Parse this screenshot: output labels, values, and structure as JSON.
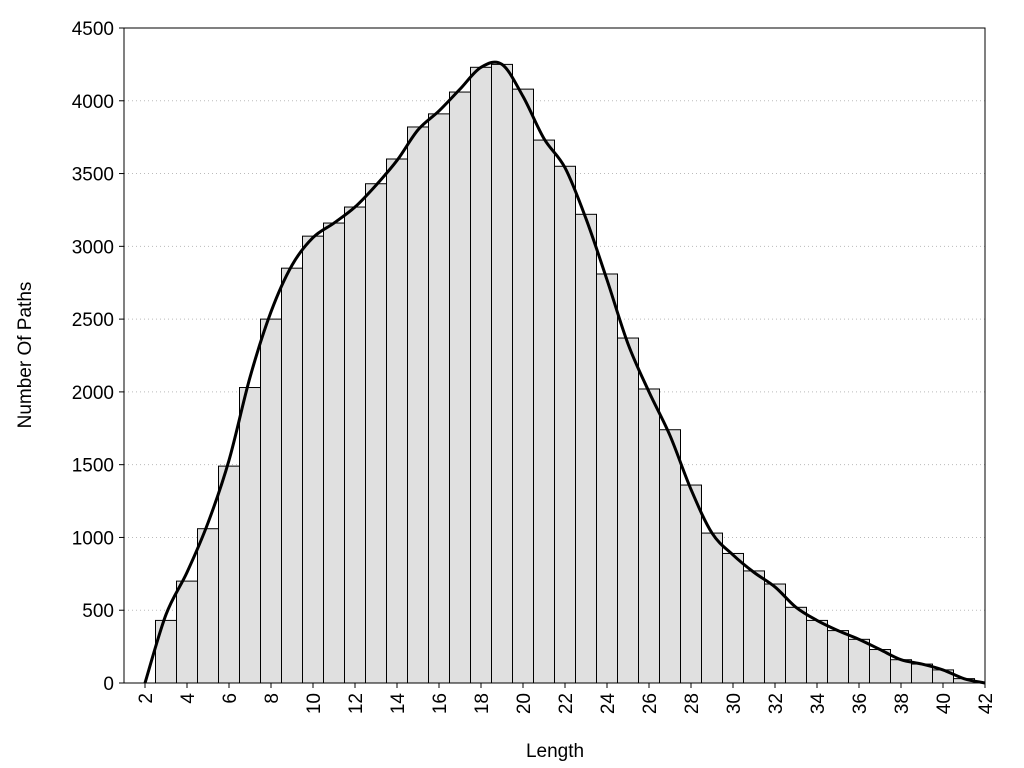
{
  "chart_data": {
    "type": "histogram",
    "xlabel": "Length",
    "ylabel": "Number Of Paths",
    "bins": [
      2.5,
      3.5,
      4.5,
      5.5,
      6.5,
      7.5,
      8.5,
      9.5,
      10.5,
      11.5,
      12.5,
      13.5,
      14.5,
      15.5,
      16.5,
      17.5,
      18.5,
      19.5,
      20.5,
      21.5,
      22.5,
      23.5,
      24.5,
      25.5,
      26.5,
      27.5,
      28.5,
      29.5,
      30.5,
      31.5,
      32.5,
      33.5,
      34.5,
      35.5,
      36.5,
      37.5,
      38.5,
      39.5,
      40.5,
      41.5
    ],
    "values": [
      430,
      700,
      1060,
      1490,
      2030,
      2500,
      2850,
      3070,
      3160,
      3270,
      3430,
      3600,
      3820,
      3910,
      4060,
      4230,
      4250,
      4080,
      3730,
      3550,
      3220,
      2810,
      2370,
      2020,
      1740,
      1360,
      1030,
      890,
      770,
      680,
      520,
      430,
      360,
      300,
      230,
      160,
      130,
      90,
      30
    ],
    "color": "#e0e0e0",
    "edgecolor": "#000000",
    "curve": {
      "color": "#000000",
      "x": [
        2,
        3,
        4,
        5,
        6,
        7,
        8,
        9,
        10,
        11,
        12,
        13,
        14,
        15,
        16,
        17,
        18,
        19,
        20,
        21,
        22,
        23,
        24,
        25,
        26,
        27,
        28,
        29,
        30,
        31,
        32,
        33,
        34,
        35,
        36,
        37,
        38,
        39,
        40,
        41,
        42
      ],
      "values": [
        0,
        470,
        760,
        1100,
        1530,
        2100,
        2550,
        2870,
        3060,
        3160,
        3270,
        3420,
        3590,
        3800,
        3930,
        4080,
        4230,
        4250,
        4030,
        3740,
        3540,
        3190,
        2770,
        2330,
        2000,
        1700,
        1330,
        1030,
        880,
        760,
        660,
        520,
        430,
        360,
        300,
        230,
        160,
        130,
        90,
        30,
        0
      ]
    },
    "xlim": [
      1,
      42
    ],
    "xticks": [
      2,
      4,
      6,
      8,
      10,
      12,
      14,
      16,
      18,
      20,
      22,
      24,
      26,
      28,
      30,
      32,
      34,
      36,
      38,
      40,
      42
    ],
    "ylim": [
      0,
      4500
    ],
    "yticks": [
      0,
      500,
      1000,
      1500,
      2000,
      2500,
      3000,
      3500,
      4000,
      4500
    ],
    "grid": true
  }
}
